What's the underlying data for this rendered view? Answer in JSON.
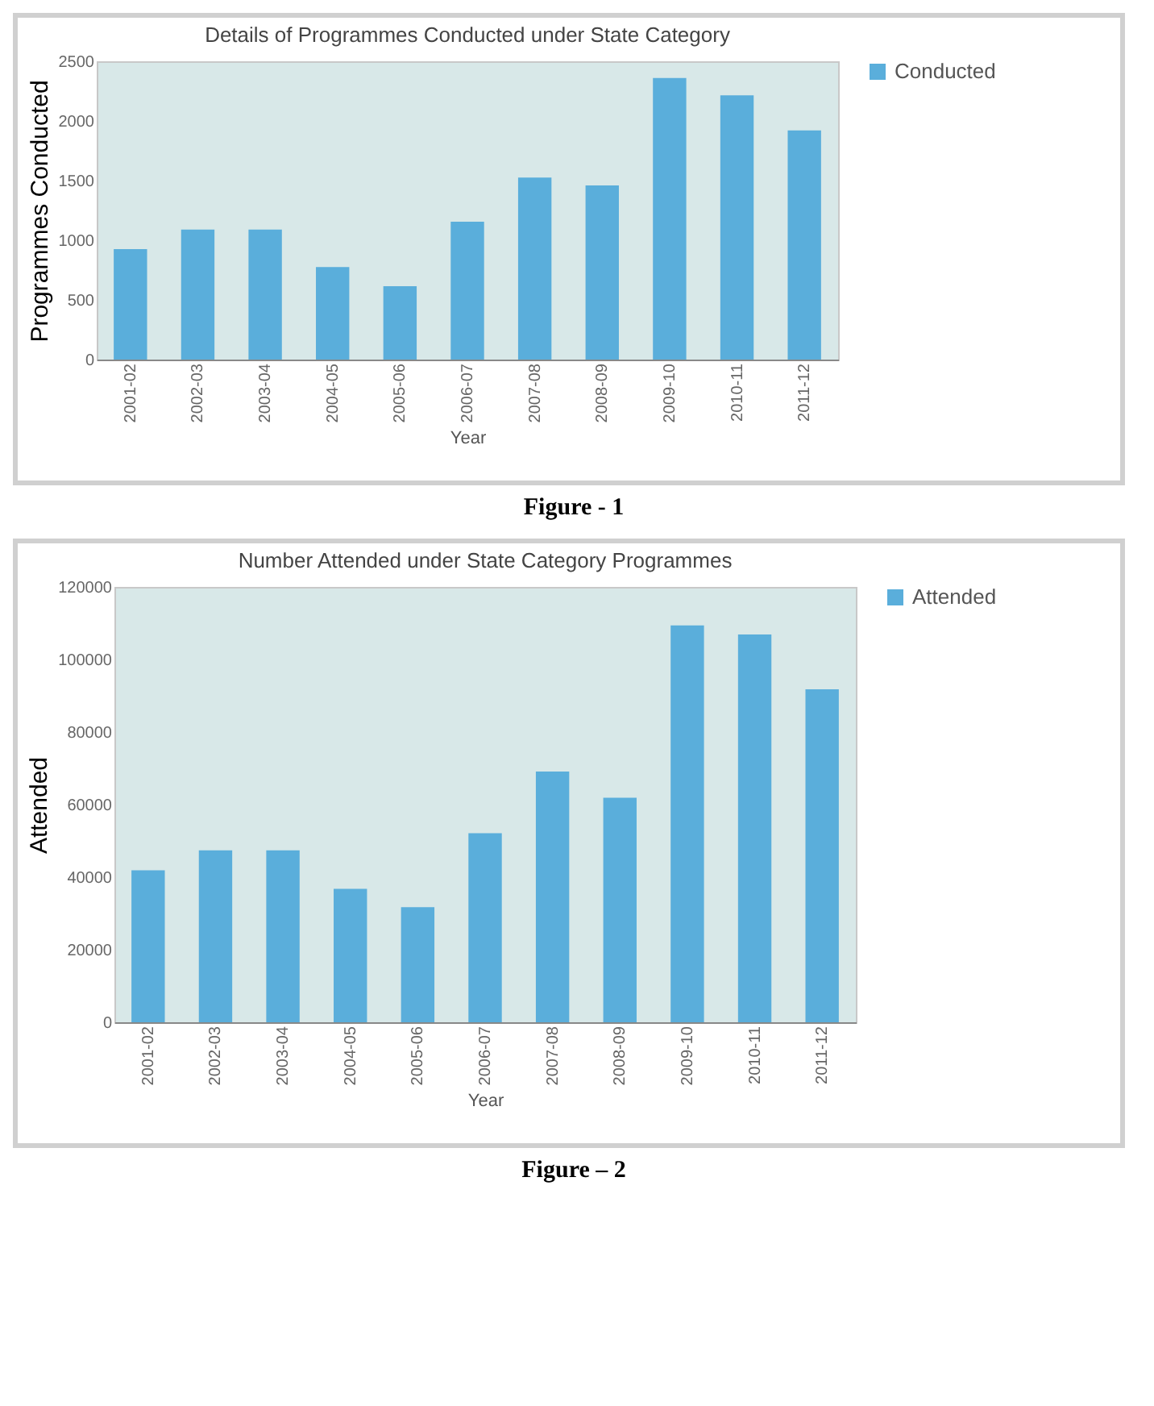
{
  "chart_data": [
    {
      "type": "bar",
      "title": "Details of Programmes Conducted under State Category",
      "xlabel": "Year",
      "ylabel": "Programmes Conducted",
      "categories": [
        "2001-02",
        "2002-03",
        "2003-04",
        "2004-05",
        "2005-06",
        "2006-07",
        "2007-08",
        "2008-09",
        "2009-10",
        "2010-11",
        "2011-12"
      ],
      "series": [
        {
          "name": "Conducted",
          "color": "#5aaedb",
          "values": [
            925,
            1090,
            1090,
            775,
            615,
            1155,
            1525,
            1460,
            2360,
            2215,
            1920
          ]
        }
      ],
      "ylim": [
        0,
        2500
      ],
      "yticks": [
        0,
        500,
        1000,
        1500,
        2000,
        2500
      ],
      "legend": "right",
      "annotations": [
        "Figure - 1"
      ]
    },
    {
      "type": "bar",
      "title": "Number Attended under State Category Programmes",
      "xlabel": "Year",
      "ylabel": "Attended",
      "categories": [
        "2001-02",
        "2002-03",
        "2003-04",
        "2004-05",
        "2005-06",
        "2006-07",
        "2007-08",
        "2008-09",
        "2009-10",
        "2010-11",
        "2011-12"
      ],
      "series": [
        {
          "name": "Attended",
          "color": "#5aaedb",
          "values": [
            41900,
            47400,
            47400,
            36800,
            31700,
            52100,
            69100,
            61900,
            109400,
            106900,
            91800
          ]
        }
      ],
      "ylim": [
        0,
        120000
      ],
      "yticks": [
        0,
        20000,
        40000,
        60000,
        80000,
        100000,
        120000
      ],
      "legend": "right",
      "annotations": [
        "Figure – 2"
      ]
    }
  ]
}
